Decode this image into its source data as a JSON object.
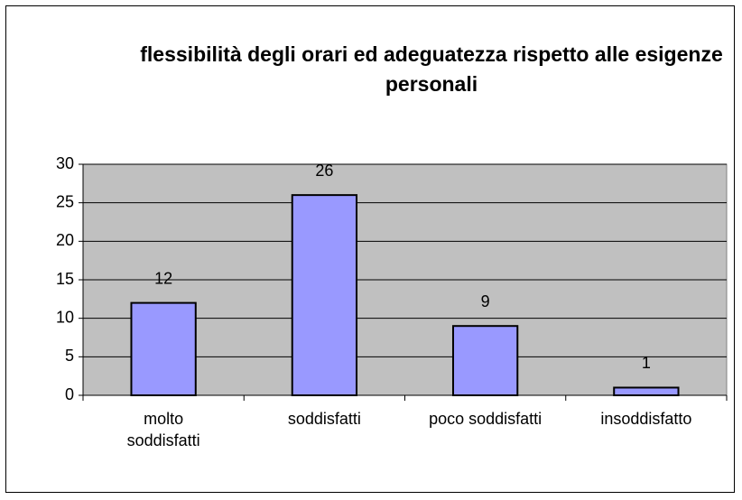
{
  "chart_data": {
    "type": "bar",
    "title": "flessibilità degli orari ed adeguatezza rispetto alle esigenze personali",
    "categories": [
      "molto soddisfatti",
      "soddisfatti",
      "poco soddisfatti",
      "insoddisfatto"
    ],
    "values": [
      12,
      26,
      9,
      1
    ],
    "color": "#9999ff",
    "ylim": [
      0,
      30
    ],
    "yticks": [
      0,
      5,
      10,
      15,
      20,
      25,
      30
    ],
    "grid": true
  }
}
